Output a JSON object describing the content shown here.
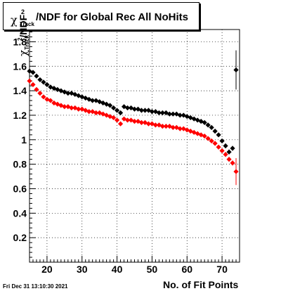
{
  "title": {
    "chi_symbol": "χ",
    "superscript": "2",
    "subscript": "Track",
    "text": "/NDF for Global Rec All NoHits"
  },
  "date_stamp": "Fri Dec 31 13:10:30 2021",
  "chart_data": {
    "type": "scatter",
    "xlabel": "No. of Fit Points",
    "ylabel": {
      "symbol": "χ",
      "superscript": "2",
      "subscript": "Track",
      "text": "/NDF"
    },
    "xlim": [
      15,
      75
    ],
    "ylim": [
      0,
      1.9
    ],
    "x_ticks": [
      20,
      30,
      40,
      50,
      60,
      70
    ],
    "y_ticks": [
      0.2,
      0.4,
      0.6,
      0.8,
      1,
      1.2,
      1.4,
      1.6,
      1.8
    ],
    "x_tick_labels": [
      "20",
      "30",
      "40",
      "50",
      "60",
      "70"
    ],
    "y_tick_labels": [
      "0.2",
      "0.4",
      "0.6",
      "0.8",
      "1",
      "1.2",
      "1.4",
      "1.6",
      "1.8"
    ],
    "grid": true,
    "series": [
      {
        "color": "#000000",
        "x": [
          15,
          16,
          17,
          18,
          19,
          20,
          21,
          22,
          23,
          24,
          25,
          26,
          27,
          28,
          29,
          30,
          31,
          32,
          33,
          34,
          35,
          36,
          37,
          38,
          39,
          40,
          41,
          42,
          43,
          44,
          45,
          46,
          47,
          48,
          49,
          50,
          51,
          52,
          53,
          54,
          55,
          56,
          57,
          58,
          59,
          60,
          61,
          62,
          63,
          64,
          65,
          66,
          67,
          68,
          69,
          70,
          71,
          72,
          73,
          74
        ],
        "y": [
          1.56,
          1.55,
          1.52,
          1.49,
          1.47,
          1.45,
          1.43,
          1.42,
          1.41,
          1.4,
          1.39,
          1.38,
          1.38,
          1.37,
          1.36,
          1.35,
          1.34,
          1.33,
          1.32,
          1.32,
          1.31,
          1.3,
          1.29,
          1.28,
          1.26,
          1.24,
          1.22,
          1.27,
          1.26,
          1.26,
          1.25,
          1.25,
          1.24,
          1.24,
          1.24,
          1.23,
          1.23,
          1.22,
          1.22,
          1.22,
          1.21,
          1.21,
          1.21,
          1.2,
          1.2,
          1.19,
          1.18,
          1.17,
          1.16,
          1.15,
          1.14,
          1.12,
          1.1,
          1.07,
          1.04,
          0.99,
          0.95,
          0.9,
          0.93,
          1.57
        ],
        "err": [
          0.01,
          0.01,
          0.01,
          0.01,
          0.01,
          0.01,
          0.01,
          0.01,
          0.01,
          0.01,
          0.01,
          0.01,
          0.01,
          0.01,
          0.01,
          0.01,
          0.01,
          0.01,
          0.01,
          0.01,
          0.01,
          0.01,
          0.01,
          0.01,
          0.01,
          0.01,
          0.01,
          0.01,
          0.01,
          0.01,
          0.01,
          0.01,
          0.01,
          0.01,
          0.01,
          0.01,
          0.01,
          0.01,
          0.01,
          0.01,
          0.01,
          0.01,
          0.01,
          0.01,
          0.01,
          0.01,
          0.01,
          0.01,
          0.01,
          0.01,
          0.01,
          0.01,
          0.01,
          0.01,
          0.01,
          0.01,
          0.02,
          0.02,
          0.02,
          0.16
        ]
      },
      {
        "color": "#ff0000",
        "x": [
          15,
          16,
          17,
          18,
          19,
          20,
          21,
          22,
          23,
          24,
          25,
          26,
          27,
          28,
          29,
          30,
          31,
          32,
          33,
          34,
          35,
          36,
          37,
          38,
          39,
          40,
          41,
          42,
          43,
          44,
          45,
          46,
          47,
          48,
          49,
          50,
          51,
          52,
          53,
          54,
          55,
          56,
          57,
          58,
          59,
          60,
          61,
          62,
          63,
          64,
          65,
          66,
          67,
          68,
          69,
          70,
          71,
          72,
          73,
          74
        ],
        "y": [
          1.48,
          1.45,
          1.41,
          1.38,
          1.35,
          1.33,
          1.32,
          1.3,
          1.29,
          1.28,
          1.27,
          1.27,
          1.26,
          1.26,
          1.25,
          1.25,
          1.24,
          1.23,
          1.23,
          1.22,
          1.22,
          1.21,
          1.2,
          1.19,
          1.18,
          1.16,
          1.13,
          1.17,
          1.16,
          1.16,
          1.15,
          1.15,
          1.14,
          1.14,
          1.13,
          1.13,
          1.12,
          1.12,
          1.11,
          1.11,
          1.11,
          1.1,
          1.1,
          1.09,
          1.09,
          1.08,
          1.07,
          1.06,
          1.05,
          1.04,
          1.03,
          1.01,
          0.99,
          0.97,
          0.94,
          0.91,
          0.88,
          0.84,
          0.81,
          0.74
        ],
        "err": [
          0.01,
          0.01,
          0.01,
          0.01,
          0.01,
          0.01,
          0.01,
          0.01,
          0.01,
          0.01,
          0.01,
          0.01,
          0.01,
          0.01,
          0.01,
          0.01,
          0.01,
          0.01,
          0.01,
          0.01,
          0.01,
          0.01,
          0.01,
          0.01,
          0.01,
          0.01,
          0.01,
          0.01,
          0.01,
          0.01,
          0.01,
          0.01,
          0.01,
          0.01,
          0.01,
          0.01,
          0.01,
          0.01,
          0.01,
          0.01,
          0.01,
          0.01,
          0.01,
          0.01,
          0.01,
          0.01,
          0.01,
          0.01,
          0.01,
          0.01,
          0.01,
          0.01,
          0.01,
          0.01,
          0.01,
          0.01,
          0.02,
          0.02,
          0.02,
          0.11
        ]
      }
    ]
  }
}
